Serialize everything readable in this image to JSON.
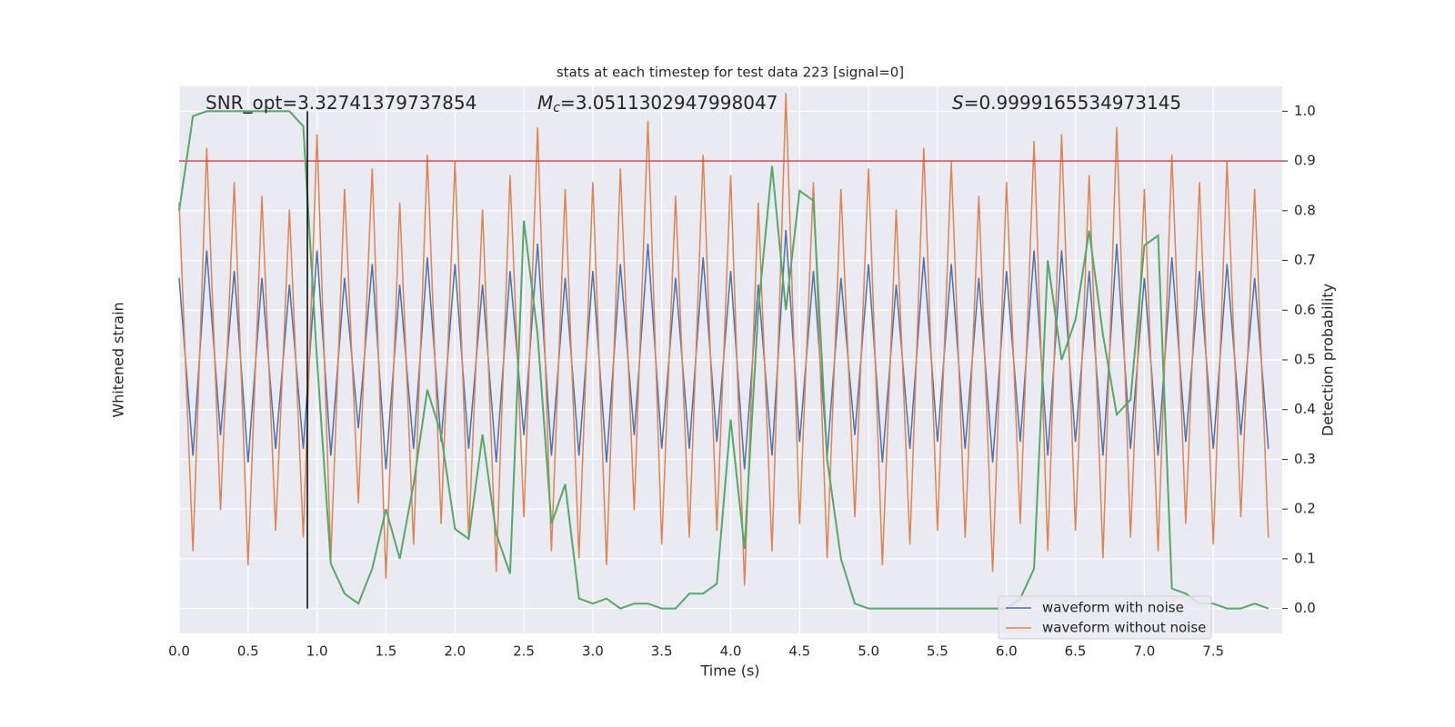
{
  "chart_data": {
    "type": "line",
    "title": "stats at each timestep for test data 223 [signal=0]",
    "xlabel": "Time (s)",
    "ylabel": "Whitened strain",
    "y2label": "Detection probability",
    "annotations": [
      {
        "text": "SNR_opt=3.32741379737854"
      },
      {
        "symbol": "M",
        "subscript": "c",
        "text": "=3.0511302947998047"
      },
      {
        "symbol": "S",
        "text": "=0.9999165534973145"
      }
    ],
    "xlim": [
      0,
      8
    ],
    "xticks": [
      {
        "value": 0,
        "label": "0.0"
      },
      {
        "value": 0.5,
        "label": "0.5"
      },
      {
        "value": 1,
        "label": "1.0"
      },
      {
        "value": 1.5,
        "label": "1.5"
      },
      {
        "value": 2,
        "label": "2.0"
      },
      {
        "value": 2.5,
        "label": "2.5"
      },
      {
        "value": 3,
        "label": "3.0"
      },
      {
        "value": 3.5,
        "label": "3.5"
      },
      {
        "value": 4,
        "label": "4.0"
      },
      {
        "value": 4.5,
        "label": "4.5"
      },
      {
        "value": 5,
        "label": "5.0"
      },
      {
        "value": 5.5,
        "label": "5.5"
      },
      {
        "value": 6,
        "label": "6.0"
      },
      {
        "value": 6.5,
        "label": "6.5"
      },
      {
        "value": 7,
        "label": "7.0"
      },
      {
        "value": 7.5,
        "label": "7.5"
      }
    ],
    "ylim": [
      -4,
      4
    ],
    "y2lim": [
      -0.05,
      1.05
    ],
    "y2ticks": [
      {
        "value": 0,
        "label": "0.0"
      },
      {
        "value": 0.1,
        "label": "0.1"
      },
      {
        "value": 0.2,
        "label": "0.2"
      },
      {
        "value": 0.3,
        "label": "0.3"
      },
      {
        "value": 0.4,
        "label": "0.4"
      },
      {
        "value": 0.5,
        "label": "0.5"
      },
      {
        "value": 0.6,
        "label": "0.6"
      },
      {
        "value": 0.7,
        "label": "0.7"
      },
      {
        "value": 0.8,
        "label": "0.8"
      },
      {
        "value": 0.9,
        "label": "0.9"
      },
      {
        "value": 1,
        "label": "1.0"
      }
    ],
    "grid": true,
    "legend": "lower right",
    "x": [
      0.0,
      0.1,
      0.2,
      0.3,
      0.4,
      0.5,
      0.6,
      0.7,
      0.8,
      0.9,
      1.0,
      1.1,
      1.2,
      1.3,
      1.4,
      1.5,
      1.6,
      1.7,
      1.8,
      1.9,
      2.0,
      2.1,
      2.2,
      2.3,
      2.4,
      2.5,
      2.6,
      2.7,
      2.8,
      2.9,
      3.0,
      3.1,
      3.2,
      3.3,
      3.4,
      3.5,
      3.6,
      3.7,
      3.8,
      3.9,
      4.0,
      4.1,
      4.2,
      4.3,
      4.4,
      4.5,
      4.6,
      4.7,
      4.8,
      4.9,
      5.0,
      5.1,
      5.2,
      5.3,
      5.4,
      5.5,
      5.6,
      5.7,
      5.8,
      5.9,
      6.0,
      6.1,
      6.2,
      6.3,
      6.4,
      6.5,
      6.6,
      6.7,
      6.8,
      6.9,
      7.0,
      7.1,
      7.2,
      7.3,
      7.4,
      7.5,
      7.6,
      7.7,
      7.8,
      7.9
    ],
    "series": [
      {
        "name": "waveform with noise",
        "color": "#4c72b0",
        "values": [
          1.2,
          -1.4,
          1.6,
          -1.1,
          1.3,
          -1.5,
          1.2,
          -1.3,
          1.1,
          -1.3,
          1.6,
          -1.4,
          1.2,
          -1.0,
          1.4,
          -1.6,
          1.1,
          -1.3,
          1.5,
          -1.2,
          1.4,
          -1.3,
          1.1,
          -1.5,
          1.3,
          -1.1,
          1.7,
          -1.4,
          1.2,
          -1.4,
          1.3,
          -1.5,
          1.4,
          -1.1,
          1.7,
          -1.3,
          1.2,
          -1.3,
          1.5,
          -1.2,
          1.3,
          -1.6,
          1.1,
          -1.4,
          1.9,
          -1.2,
          1.3,
          -1.4,
          1.2,
          -1.1,
          1.4,
          -1.5,
          1.1,
          -1.3,
          1.5,
          -1.2,
          1.4,
          -1.3,
          1.2,
          -1.5,
          1.3,
          -1.2,
          1.6,
          -1.4,
          1.6,
          -1.2,
          1.3,
          -1.4,
          1.7,
          -1.3,
          1.2,
          -1.4,
          1.5,
          -1.2,
          1.3,
          -1.3,
          1.4,
          -1.1,
          1.2,
          -1.3
        ]
      },
      {
        "name": "waveform without noise",
        "color": "#dd8452",
        "values": [
          2.3,
          -2.8,
          3.1,
          -2.2,
          2.6,
          -3.0,
          2.4,
          -2.5,
          2.2,
          -2.6,
          3.3,
          -2.9,
          2.5,
          -2.1,
          2.8,
          -3.2,
          2.3,
          -2.7,
          3.0,
          -2.4,
          2.9,
          -2.6,
          2.2,
          -3.1,
          2.7,
          -2.3,
          3.4,
          -2.8,
          2.5,
          -2.9,
          2.6,
          -3.0,
          2.8,
          -2.2,
          3.5,
          -2.7,
          2.4,
          -2.6,
          3.0,
          -2.5,
          2.7,
          -3.3,
          2.3,
          -2.8,
          3.9,
          -2.4,
          2.6,
          -2.9,
          2.5,
          -2.3,
          2.8,
          -3.0,
          2.2,
          -2.7,
          3.1,
          -2.5,
          2.9,
          -2.6,
          2.4,
          -3.1,
          2.6,
          -2.4,
          3.2,
          -2.8,
          3.3,
          -2.5,
          2.7,
          -2.9,
          3.4,
          -2.6,
          2.5,
          -2.8,
          3.0,
          -2.4,
          2.6,
          -2.7,
          2.9,
          -2.3,
          2.5,
          -2.6
        ]
      }
    ],
    "probability": {
      "color": "#55a868",
      "axis": "y2",
      "values": [
        0.8,
        0.99,
        1.0,
        1.0,
        1.0,
        1.0,
        1.0,
        1.0,
        1.0,
        0.97,
        0.5,
        0.09,
        0.03,
        0.01,
        0.08,
        0.2,
        0.1,
        0.25,
        0.44,
        0.35,
        0.16,
        0.14,
        0.35,
        0.15,
        0.07,
        0.78,
        0.55,
        0.17,
        0.25,
        0.02,
        0.01,
        0.02,
        0.0,
        0.01,
        0.01,
        0.0,
        0.0,
        0.03,
        0.03,
        0.05,
        0.38,
        0.12,
        0.6,
        0.89,
        0.6,
        0.84,
        0.82,
        0.3,
        0.1,
        0.01,
        0.0,
        0.0,
        0.0,
        0.0,
        0.0,
        0.0,
        0.0,
        0.0,
        0.0,
        0.0,
        0.0,
        0.02,
        0.08,
        0.7,
        0.5,
        0.58,
        0.76,
        0.55,
        0.39,
        0.42,
        0.73,
        0.75,
        0.04,
        0.03,
        0.01,
        0.01,
        0.0,
        0.0,
        0.01,
        0.0
      ]
    },
    "threshold": {
      "value": 0.9,
      "color": "#c44e52",
      "axis": "y2"
    },
    "vline": {
      "value": 0.93,
      "color": "#000000"
    }
  }
}
